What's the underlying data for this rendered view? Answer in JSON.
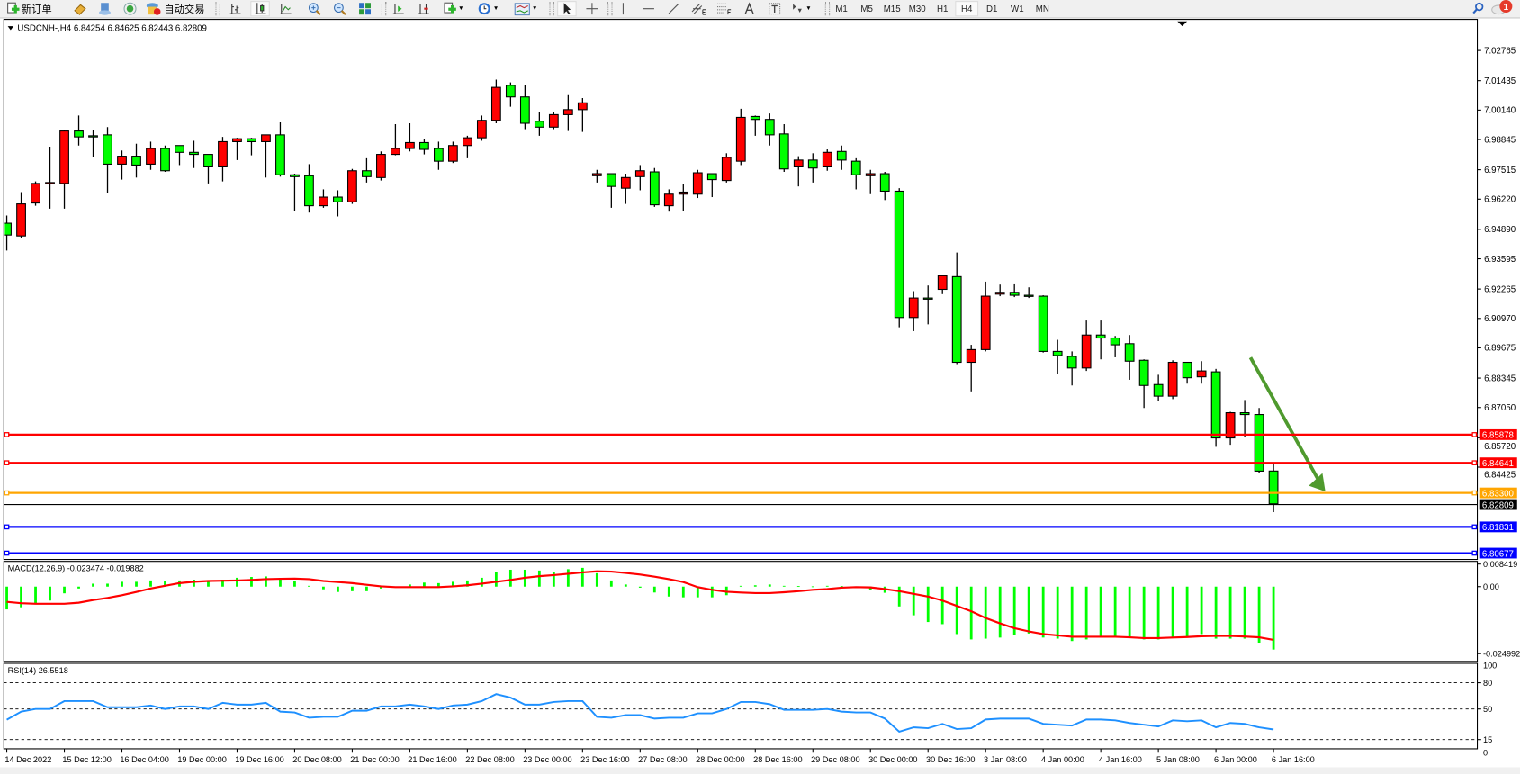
{
  "toolbar": {
    "new_order_label": "新订单",
    "auto_trading_label": "自动交易",
    "timeframes": [
      "M1",
      "M5",
      "M15",
      "M30",
      "H1",
      "H4",
      "D1",
      "W1",
      "MN"
    ],
    "active_timeframe": "H4",
    "notification_count": "1",
    "icons": [
      "new-order-icon",
      "gold-bar-icon",
      "market-watch-icon",
      "signals-icon",
      "auto-trading-icon",
      "bar-chart-icon",
      "candlestick-icon",
      "line-chart-icon",
      "zoom-in-icon",
      "zoom-out-icon",
      "tile-windows-icon",
      "auto-scroll-icon",
      "chart-shift-icon",
      "indicators-icon",
      "periods-icon",
      "templates-icon",
      "cursor-icon",
      "crosshair-icon",
      "vertical-line-icon",
      "horizontal-line-icon",
      "trendline-icon",
      "equidistant-channel-icon",
      "fibonacci-icon",
      "text-icon",
      "text-label-icon",
      "arrows-icon",
      "search-icon",
      "notification-icon"
    ]
  },
  "chart_header": "USDCNH-,H4  6.84254 6.84625 6.82443 6.82809",
  "colors": {
    "bull": "#ff0000",
    "bear": "#00ff00",
    "outline": "#000000",
    "macd_hist": "#00ff00",
    "macd_signal": "#ff0000",
    "rsi": "#1e90ff",
    "arrow": "#4f9a2e"
  },
  "chart_data": {
    "type": "candlestick",
    "symbol": "USDCNH-",
    "timeframe": "H4",
    "ohlc_order": [
      "open",
      "high",
      "low",
      "close"
    ],
    "candles": [
      [
        6.9516,
        6.955,
        6.9396,
        6.9464
      ],
      [
        6.946,
        6.9653,
        6.9452,
        6.9601
      ],
      [
        6.9605,
        6.97,
        6.9593,
        6.9691
      ],
      [
        6.9691,
        6.9853,
        6.958,
        6.9695
      ],
      [
        6.9691,
        6.9926,
        6.958,
        6.9922
      ],
      [
        6.9922,
        6.999,
        6.9858,
        6.9896
      ],
      [
        6.9901,
        6.9926,
        6.9806,
        6.9896
      ],
      [
        6.9905,
        6.9939,
        6.9648,
        6.9776
      ],
      [
        6.9776,
        6.9836,
        6.9708,
        6.9811
      ],
      [
        6.9811,
        6.9866,
        6.9717,
        6.9772
      ],
      [
        6.9776,
        6.9875,
        6.9751,
        6.9845
      ],
      [
        6.9845,
        6.9858,
        6.9742,
        6.9747
      ],
      [
        6.9858,
        6.9858,
        6.9772,
        6.9828
      ],
      [
        6.9828,
        6.9879,
        6.9759,
        6.9819
      ],
      [
        6.9819,
        6.9819,
        6.9691,
        6.9764
      ],
      [
        6.9764,
        6.9896,
        6.97,
        6.9875
      ],
      [
        6.9875,
        6.9892,
        6.9794,
        6.9888
      ],
      [
        6.9888,
        6.9892,
        6.9815,
        6.9875
      ],
      [
        6.9875,
        6.9905,
        6.9717,
        6.9905
      ],
      [
        6.9905,
        6.996,
        6.9721,
        6.9729
      ],
      [
        6.9729,
        6.9734,
        6.9571,
        6.9721
      ],
      [
        6.9725,
        6.9776,
        6.9563,
        6.9593
      ],
      [
        6.9593,
        6.9665,
        6.9584,
        6.9631
      ],
      [
        6.9631,
        6.9661,
        6.9546,
        6.961
      ],
      [
        6.961,
        6.9755,
        6.9601,
        6.9747
      ],
      [
        6.9747,
        6.9802,
        6.9695,
        6.9721
      ],
      [
        6.9717,
        6.9832,
        6.9704,
        6.9819
      ],
      [
        6.9819,
        6.9952,
        6.9815,
        6.9845
      ],
      [
        6.9845,
        6.9956,
        6.9832,
        6.9871
      ],
      [
        6.9871,
        6.9888,
        6.9819,
        6.9841
      ],
      [
        6.9845,
        6.9875,
        6.9751,
        6.9789
      ],
      [
        6.9789,
        6.9875,
        6.9781,
        6.9858
      ],
      [
        6.9858,
        6.9901,
        6.9802,
        6.9892
      ],
      [
        6.9892,
        6.999,
        6.9879,
        6.9969
      ],
      [
        6.9969,
        7.0148,
        6.9956,
        7.0114
      ],
      [
        7.0123,
        7.0136,
        7.0029,
        7.0072
      ],
      [
        7.0072,
        7.0123,
        6.993,
        6.9956
      ],
      [
        6.9965,
        7.0007,
        6.9901,
        6.9939
      ],
      [
        6.9939,
        7.0007,
        6.993,
        6.9994
      ],
      [
        6.9994,
        7.008,
        6.9922,
        7.0016
      ],
      [
        7.0016,
        7.0067,
        6.9918,
        7.0046
      ],
      [
        6.9725,
        6.9751,
        6.9695,
        6.9734
      ],
      [
        6.9734,
        6.9734,
        6.9584,
        6.9678
      ],
      [
        6.967,
        6.9734,
        6.9601,
        6.9717
      ],
      [
        6.9721,
        6.9772,
        6.9661,
        6.9747
      ],
      [
        6.9742,
        6.9759,
        6.9588,
        6.9597
      ],
      [
        6.9593,
        6.9665,
        6.9567,
        6.9644
      ],
      [
        6.9644,
        6.9687,
        6.9571,
        6.9653
      ],
      [
        6.9644,
        6.9751,
        6.9627,
        6.9738
      ],
      [
        6.9734,
        6.9734,
        6.9631,
        6.9708
      ],
      [
        6.9704,
        6.9824,
        6.9695,
        6.9806
      ],
      [
        6.9789,
        7.002,
        6.9772,
        6.9982
      ],
      [
        6.9986,
        6.999,
        6.9901,
        6.9973
      ],
      [
        6.9973,
        6.9999,
        6.9858,
        6.9905
      ],
      [
        6.9909,
        6.9952,
        6.9742,
        6.9755
      ],
      [
        6.9764,
        6.9811,
        6.9678,
        6.9794
      ],
      [
        6.9794,
        6.9824,
        6.9695,
        6.9759
      ],
      [
        6.9764,
        6.9841,
        6.9747,
        6.9828
      ],
      [
        6.9832,
        6.9858,
        6.9751,
        6.9794
      ],
      [
        6.9789,
        6.9802,
        6.9665,
        6.9729
      ],
      [
        6.9725,
        6.9751,
        6.9644,
        6.9734
      ],
      [
        6.9734,
        6.9742,
        6.9618,
        6.9657
      ],
      [
        6.9657,
        6.967,
        6.9058,
        6.9101
      ],
      [
        6.9101,
        6.9217,
        6.9041,
        6.9187
      ],
      [
        6.9187,
        6.9242,
        6.9071,
        6.9186
      ],
      [
        6.9225,
        6.9285,
        6.9204,
        6.9285
      ],
      [
        6.9281,
        6.9387,
        6.8896,
        6.8904
      ],
      [
        6.8904,
        6.8981,
        6.8776,
        6.896
      ],
      [
        6.896,
        6.9259,
        6.8952,
        6.9195
      ],
      [
        6.9204,
        6.9246,
        6.9195,
        6.9212
      ],
      [
        6.9212,
        6.9251,
        6.9191,
        6.9199
      ],
      [
        6.9199,
        6.9234,
        6.9187,
        6.9198
      ],
      [
        6.9195,
        6.9199,
        6.8947,
        6.8952
      ],
      [
        6.8952,
        6.9003,
        6.8853,
        6.8934
      ],
      [
        6.893,
        6.8952,
        6.8802,
        6.8879
      ],
      [
        6.8879,
        6.9088,
        6.8866,
        6.9024
      ],
      [
        6.9024,
        6.9088,
        6.8917,
        6.9011
      ],
      [
        6.9011,
        6.902,
        6.8926,
        6.8981
      ],
      [
        6.8986,
        6.9024,
        6.8827,
        6.8909
      ],
      [
        6.8913,
        6.8917,
        6.8703,
        6.8802
      ],
      [
        6.8806,
        6.8849,
        6.8733,
        6.8755
      ],
      [
        6.8755,
        6.8913,
        6.8742,
        6.8904
      ],
      [
        6.8904,
        6.8904,
        6.881,
        6.8836
      ],
      [
        6.884,
        6.8909,
        6.881,
        6.8866
      ],
      [
        6.8862,
        6.8875,
        6.8532,
        6.8571
      ],
      [
        6.8571,
        6.8686,
        6.8541,
        6.8682
      ],
      [
        6.8682,
        6.8738,
        6.8575,
        6.8674
      ],
      [
        6.8674,
        6.8703,
        6.8417,
        6.8425
      ],
      [
        6.84254,
        6.84625,
        6.82443,
        6.82809
      ]
    ],
    "price_ticks": [
      "7.02765",
      "7.01435",
      "7.00140",
      "6.98845",
      "6.97515",
      "6.96220",
      "6.94890",
      "6.93595",
      "6.92265",
      "6.90970",
      "6.89675",
      "6.88345",
      "6.87050",
      "6.85720",
      "6.84425"
    ],
    "price_range": [
      6.804,
      7.0415
    ],
    "time_labels": [
      "14 Dec 2022",
      "15 Dec 12:00",
      "16 Dec 04:00",
      "19 Dec 00:00",
      "19 Dec 16:00",
      "20 Dec 08:00",
      "21 Dec 00:00",
      "21 Dec 16:00",
      "22 Dec 08:00",
      "23 Dec 00:00",
      "23 Dec 16:00",
      "27 Dec 08:00",
      "28 Dec 00:00",
      "28 Dec 16:00",
      "29 Dec 08:00",
      "30 Dec 00:00",
      "30 Dec 16:00",
      "3 Jan 08:00",
      "4 Jan 00:00",
      "4 Jan 16:00",
      "5 Jan 08:00",
      "6 Jan 00:00",
      "6 Jan 16:00"
    ],
    "horizontal_lines": [
      {
        "price": "6.85878",
        "color": "#ff0000",
        "text_color": "#ffffff"
      },
      {
        "price": "6.84641",
        "color": "#ff0000",
        "text_color": "#ffffff"
      },
      {
        "price": "6.83300",
        "color": "#ffa500",
        "text_color": "#ffffff"
      },
      {
        "price": "6.82809",
        "color": "#000000",
        "text_color": "#ffffff",
        "bid_line": true
      },
      {
        "price": "6.81831",
        "color": "#0000ff",
        "text_color": "#ffffff"
      },
      {
        "price": "6.80677",
        "color": "#0000ff",
        "text_color": "#ffffff"
      }
    ],
    "arrow_annotation": {
      "from": {
        "time": "6 Jan 00:00 (approx.)",
        "price": 6.8925
      },
      "to": {
        "time": "6 Jan 20:00 (approx.)",
        "price": 6.8335
      }
    },
    "macd": {
      "label": "MACD(12,26,9) -0.023474 -0.019882",
      "axis_labels": [
        "0.008419",
        "0.00",
        "-0.024992"
      ],
      "range": [
        -0.024992,
        0.008419
      ],
      "histogram": [
        -0.0085,
        -0.0077,
        -0.0062,
        -0.0052,
        -0.0025,
        -0.0007,
        0.0011,
        0.0011,
        0.0018,
        0.0018,
        0.0023,
        0.002,
        0.0023,
        0.0026,
        0.0023,
        0.0026,
        0.0033,
        0.0036,
        0.0038,
        0.0028,
        0.002,
        0.0003,
        -0.001,
        -0.002,
        -0.0017,
        -0.0017,
        -0.0007,
        0.0,
        0.0008,
        0.0015,
        0.0013,
        0.0018,
        0.0023,
        0.0033,
        0.0053,
        0.0063,
        0.0063,
        0.006,
        0.0056,
        0.0065,
        0.007,
        0.005,
        0.0023,
        0.0008,
        -0.0004,
        -0.0022,
        -0.0037,
        -0.004,
        -0.004,
        -0.004,
        -0.0032,
        0.0003,
        0.0005,
        0.0008,
        0.0003,
        0.0002,
        0.0001,
        0.0003,
        0.0002,
        -0.0003,
        -0.0013,
        -0.0023,
        -0.0074,
        -0.0107,
        -0.0132,
        -0.014,
        -0.0177,
        -0.0197,
        -0.0194,
        -0.019,
        -0.0182,
        -0.0175,
        -0.019,
        -0.0194,
        -0.0203,
        -0.0197,
        -0.0187,
        -0.0187,
        -0.019,
        -0.0197,
        -0.0197,
        -0.019,
        -0.019,
        -0.0177,
        -0.0194,
        -0.0194,
        -0.0194,
        -0.0209,
        -0.023474
      ],
      "signal": [
        -0.0057,
        -0.0062,
        -0.0064,
        -0.0064,
        -0.0064,
        -0.006,
        -0.005,
        -0.0042,
        -0.0032,
        -0.002,
        -0.0007,
        0.0003,
        0.0013,
        0.0018,
        0.0021,
        0.0022,
        0.0023,
        0.0025,
        0.0028,
        0.0029,
        0.003,
        0.0028,
        0.0021,
        0.0017,
        0.0013,
        0.0007,
        0.0001,
        -0.0002,
        -0.0002,
        -0.0002,
        -0.0002,
        0.0001,
        0.0005,
        0.0011,
        0.0018,
        0.0025,
        0.0033,
        0.0039,
        0.0043,
        0.0048,
        0.0053,
        0.0057,
        0.0056,
        0.0051,
        0.0045,
        0.0037,
        0.0028,
        0.0017,
        -0.0002,
        -0.0012,
        -0.0019,
        -0.0022,
        -0.0024,
        -0.0024,
        -0.0021,
        -0.0017,
        -0.0012,
        -0.0009,
        -0.0004,
        -0.0002,
        -0.0003,
        -0.0009,
        -0.0017,
        -0.0027,
        -0.0037,
        -0.0052,
        -0.0072,
        -0.0092,
        -0.0117,
        -0.0137,
        -0.0155,
        -0.0167,
        -0.0177,
        -0.0182,
        -0.0187,
        -0.0187,
        -0.0187,
        -0.0187,
        -0.0189,
        -0.0192,
        -0.0192,
        -0.019,
        -0.0188,
        -0.0185,
        -0.0184,
        -0.0184,
        -0.0186,
        -0.0189,
        -0.019882
      ]
    },
    "rsi": {
      "label": "RSI(14) 26.5518",
      "axis_labels": [
        "100",
        "80",
        "50",
        "15",
        "0"
      ],
      "levels": [
        80,
        50,
        15
      ],
      "range": [
        0,
        100
      ],
      "values": [
        37.7,
        47,
        50,
        50,
        59,
        59,
        59,
        52,
        52,
        52,
        54,
        50,
        53,
        53,
        50,
        57,
        55,
        55,
        57,
        47,
        46,
        40,
        41,
        41,
        48,
        48,
        53,
        53,
        55,
        53,
        50,
        54,
        55,
        59,
        67,
        63,
        55,
        55,
        58,
        59,
        59,
        41,
        40,
        43,
        43,
        39,
        40,
        40,
        45,
        45,
        50,
        58,
        58,
        55.5,
        49,
        49,
        49,
        50,
        47,
        46,
        46,
        39,
        24,
        29,
        28,
        33,
        27,
        28,
        38,
        39,
        39,
        39,
        33,
        32,
        31,
        38,
        38,
        37,
        34,
        32,
        30,
        37,
        36,
        37,
        29,
        34,
        33,
        29,
        26.5518
      ]
    }
  }
}
